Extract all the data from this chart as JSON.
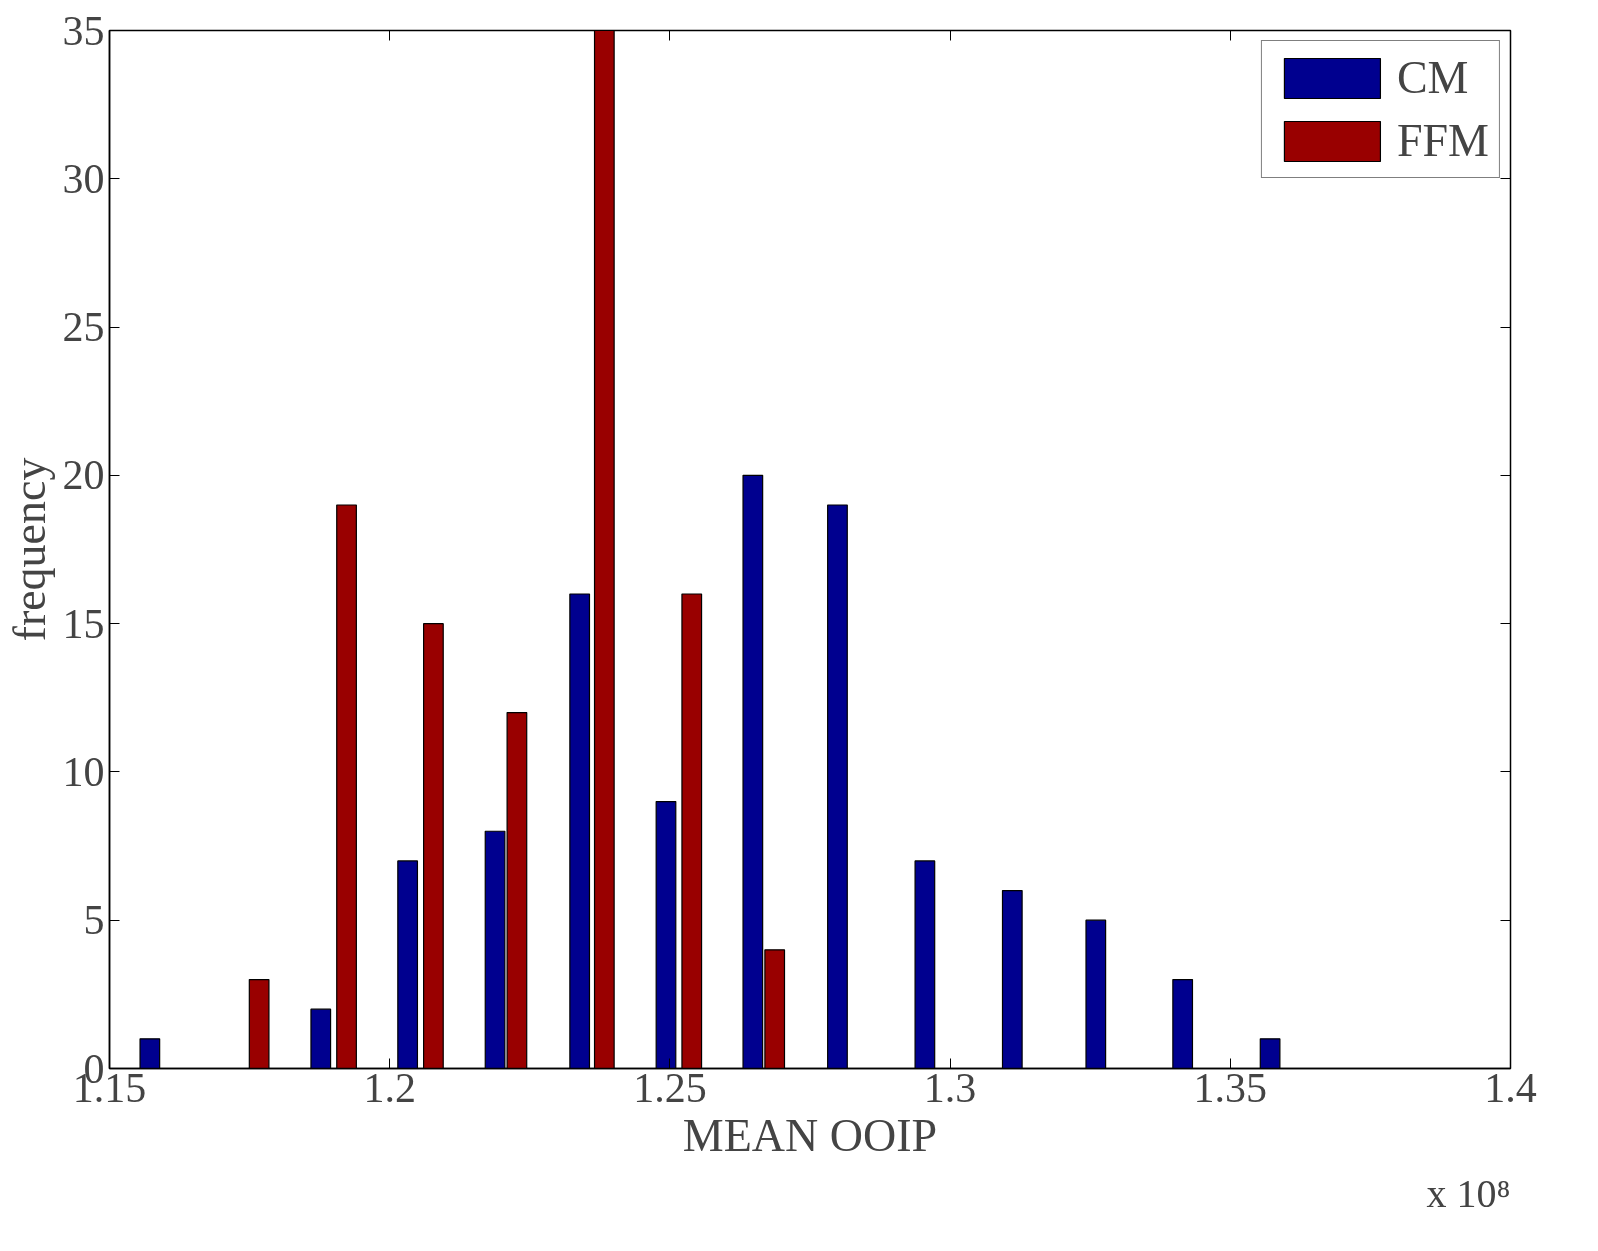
{
  "chart_data": {
    "type": "bar",
    "xlabel": "MEAN OOIP",
    "ylabel": "frequency",
    "annotations": [
      "x 10⁸"
    ],
    "series": [
      {
        "name": "CM",
        "color": "#00008f",
        "x": [
          1.1572,
          1.1877,
          1.2032,
          1.2188,
          1.2339,
          1.2493,
          1.2648,
          1.2799,
          1.2955,
          1.3111,
          1.326,
          1.3415,
          1.3571
        ],
        "values": [
          1,
          2,
          7,
          8,
          16,
          9,
          20,
          19,
          7,
          6,
          5,
          3,
          1
        ]
      },
      {
        "name": "FFM",
        "color": "#990000",
        "x": [
          1.1767,
          1.1923,
          1.2078,
          1.2227,
          1.2383,
          1.2539,
          1.2687
        ],
        "values": [
          3,
          19,
          15,
          12,
          35,
          16,
          4
        ]
      }
    ],
    "xlim": [
      1.15,
      1.4
    ],
    "xticks": [
      1.15,
      1.2,
      1.25,
      1.3,
      1.35,
      1.4
    ],
    "ylim": [
      0,
      35
    ],
    "yticks": [
      0,
      5,
      10,
      15,
      20,
      25,
      30,
      35
    ],
    "grid": false,
    "legend": "top right"
  }
}
